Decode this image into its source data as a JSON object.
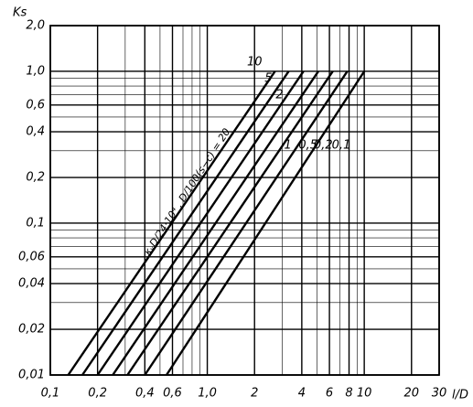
{
  "chart_data": {
    "type": "line",
    "y_label": "Ks",
    "x_label": "l/D",
    "annotation": "κᵥD/24·10⁴ , D/100(s−c) = 20",
    "log_x": true,
    "log_y": true,
    "grid": true,
    "minor_grid": true,
    "color": "#000000",
    "xlim": [
      0.1,
      30
    ],
    "ylim": [
      0.01,
      2.0
    ],
    "xticks": [
      {
        "value": 0.1,
        "label": "0,1"
      },
      {
        "value": 0.2,
        "label": "0,2"
      },
      {
        "value": 0.4,
        "label": "0,4"
      },
      {
        "value": 0.6,
        "label": "0,6"
      },
      {
        "value": 1.0,
        "label": "1,0"
      },
      2,
      4,
      6,
      8,
      10,
      20,
      30
    ],
    "yticks": [
      {
        "value": 0.01,
        "label": "0,01"
      },
      {
        "value": 0.02,
        "label": "0,02"
      },
      {
        "value": 0.04,
        "label": "0,04"
      },
      {
        "value": 0.06,
        "label": "0,06"
      },
      {
        "value": 0.1,
        "label": "0,1"
      },
      {
        "value": 0.2,
        "label": "0,2"
      },
      {
        "value": 0.4,
        "label": "0,4"
      },
      {
        "value": 0.6,
        "label": "0,6"
      },
      {
        "value": 1.0,
        "label": "1,0"
      },
      {
        "value": 2.0,
        "label": "2,0"
      }
    ],
    "series": [
      {
        "name": "10",
        "x": [
          0.13,
          2.7
        ],
        "y": [
          0.01,
          1.0
        ]
      },
      {
        "name": "5",
        "x": [
          0.16,
          3.3
        ],
        "y": [
          0.01,
          1.0
        ]
      },
      {
        "name": "2",
        "x": [
          0.2,
          4.1
        ],
        "y": [
          0.01,
          1.0
        ]
      },
      {
        "name": "1",
        "x": [
          0.25,
          5.1
        ],
        "y": [
          0.01,
          1.0
        ]
      },
      {
        "name": "0,5",
        "x": [
          0.31,
          6.3
        ],
        "y": [
          0.01,
          1.0
        ]
      },
      {
        "name": "0,2",
        "x": [
          0.4,
          7.8
        ],
        "y": [
          0.01,
          1.0
        ]
      },
      {
        "name": "0,1",
        "x": [
          0.55,
          10
        ],
        "y": [
          0.01,
          1.0
        ]
      }
    ]
  }
}
